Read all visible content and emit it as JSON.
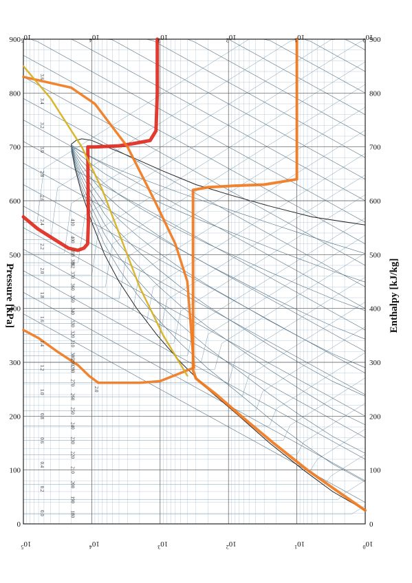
{
  "chart_data": {
    "type": "line",
    "orientation": "rotated-90",
    "x_axis": {
      "label": "Enthalpy [kJ/kg]",
      "ticks": [
        0,
        100,
        200,
        300,
        400,
        500,
        600,
        700,
        800,
        900
      ],
      "range": [
        0,
        900
      ]
    },
    "y_axis": {
      "label": "Pressure [kPa]",
      "scale": "log",
      "tick_labels": [
        {
          "base": "10",
          "exp": "0",
          "value": 1
        },
        {
          "base": "10",
          "exp": "1",
          "value": 10
        },
        {
          "base": "10",
          "exp": "2",
          "value": 100
        },
        {
          "base": "10",
          "exp": "3",
          "value": 1000
        },
        {
          "base": "10",
          "exp": "4",
          "value": 10000
        },
        {
          "base": "10",
          "exp": "5",
          "value": 100000
        }
      ],
      "range": [
        1,
        100000
      ]
    },
    "grid": true,
    "isotherm_labels": [
      "180",
      "190",
      "200",
      "210",
      "220",
      "230",
      "240",
      "250",
      "260",
      "270",
      "280",
      "290",
      "300",
      "310",
      "320",
      "330",
      "340",
      "350",
      "360",
      "370",
      "380",
      "390",
      "400",
      "410"
    ],
    "isotherm_label_enthalpy": [
      18,
      45,
      73,
      100,
      128,
      155,
      182,
      210,
      236,
      262,
      287,
      300,
      312,
      335,
      352,
      372,
      395,
      418,
      440,
      462,
      485,
      503,
      528,
      560
    ],
    "entropy_labels": [
      "0.0",
      "0.2",
      "0.4",
      "0.6",
      "0.8",
      "1.0",
      "1.2",
      "1.4",
      "1.6",
      "1.8",
      "2.0",
      "2.2",
      "2.4",
      "2.6",
      "2.8",
      "3.0",
      "3.2",
      "3.4",
      "3.6"
    ],
    "annotations": [
      {
        "text": "2.0",
        "h": 250,
        "p": 9000
      },
      {
        "text": "3.2",
        "h": 480,
        "p": 20000
      }
    ],
    "series": [
      {
        "color": "#e02a1e",
        "width": 5,
        "points": [
          [
            570,
            100000
          ],
          [
            548,
            62000
          ],
          [
            528,
            35000
          ],
          [
            512,
            22000
          ],
          [
            508,
            16000
          ],
          [
            512,
            13000
          ],
          [
            520,
            11500
          ],
          [
            560,
            11200
          ],
          [
            610,
            11300
          ],
          [
            690,
            11400
          ],
          [
            700,
            11400
          ],
          [
            700,
            9000
          ],
          [
            702,
            4000
          ],
          [
            706,
            2500
          ],
          [
            712,
            1400
          ],
          [
            730,
            1150
          ],
          [
            800,
            1100
          ],
          [
            900,
            1100
          ]
        ]
      },
      {
        "color": "#f07a20",
        "width": 4,
        "points": [
          [
            25,
            1
          ],
          [
            60,
            2.5
          ],
          [
            100,
            7
          ],
          [
            150,
            22
          ],
          [
            200,
            65
          ],
          [
            240,
            150
          ],
          [
            262,
            250
          ],
          [
            270,
            300
          ],
          [
            285,
            330
          ],
          [
            620,
            330
          ],
          [
            625,
            200
          ],
          [
            628,
            80
          ],
          [
            630,
            30
          ],
          [
            640,
            10
          ],
          [
            900,
            10
          ]
        ]
      },
      {
        "color": "#f07a20",
        "width": 3.5,
        "points": [
          [
            360,
            100000
          ],
          [
            345,
            60000
          ],
          [
            320,
            32000
          ],
          [
            295,
            16000
          ],
          [
            275,
            11000
          ],
          [
            262,
            8000
          ],
          [
            262,
            4000
          ],
          [
            262,
            2000
          ],
          [
            265,
            1000
          ],
          [
            290,
            320
          ],
          [
            450,
            400
          ],
          [
            520,
            600
          ],
          [
            600,
            1200
          ],
          [
            700,
            3000
          ],
          [
            780,
            9000
          ],
          [
            810,
            20000
          ],
          [
            830,
            100000
          ]
        ]
      },
      {
        "color": "#d8b020",
        "width": 2.5,
        "points": [
          [
            275,
            400
          ],
          [
            350,
            900
          ],
          [
            440,
            2000
          ],
          [
            540,
            4000
          ],
          [
            620,
            7000
          ],
          [
            700,
            14000
          ],
          [
            790,
            40000
          ],
          [
            850,
            100000
          ]
        ]
      }
    ]
  }
}
